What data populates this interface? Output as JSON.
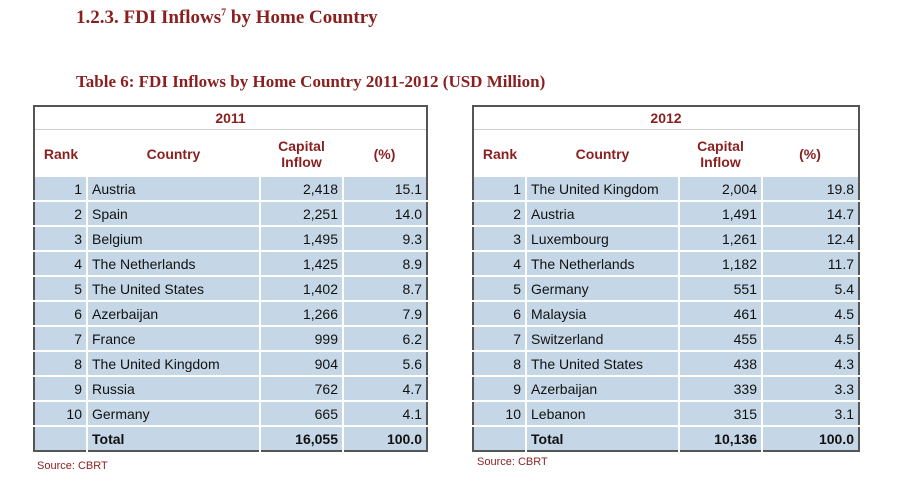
{
  "section_heading": {
    "number_title": "1.2.3. FDI Inflows",
    "footnote_mark": "7",
    "suffix": " by Home Country"
  },
  "table_caption": "Table 6: FDI Inflows by Home Country 2011-2012 (USD Million)",
  "headers": {
    "rank": "Rank",
    "country": "Country",
    "capital_line1": "Capital",
    "capital_line2": "Inflow",
    "percent": "(%)"
  },
  "tables": [
    {
      "year": "2011",
      "rows": [
        {
          "rank": "1",
          "country": "Austria",
          "capital": "2,418",
          "percent": "15.1"
        },
        {
          "rank": "2",
          "country": "Spain",
          "capital": "2,251",
          "percent": "14.0"
        },
        {
          "rank": "3",
          "country": "Belgium",
          "capital": "1,495",
          "percent": "9.3"
        },
        {
          "rank": "4",
          "country": "The Netherlands",
          "capital": "1,425",
          "percent": "8.9"
        },
        {
          "rank": "5",
          "country": "The United States",
          "capital": "1,402",
          "percent": "8.7"
        },
        {
          "rank": "6",
          "country": "Azerbaijan",
          "capital": "1,266",
          "percent": "7.9"
        },
        {
          "rank": "7",
          "country": "France",
          "capital": "999",
          "percent": "6.2"
        },
        {
          "rank": "8",
          "country": "The United Kingdom",
          "capital": "904",
          "percent": "5.6"
        },
        {
          "rank": "9",
          "country": "Russia",
          "capital": "762",
          "percent": "4.7"
        },
        {
          "rank": "10",
          "country": "Germany",
          "capital": "665",
          "percent": "4.1"
        }
      ],
      "total": {
        "label": "Total",
        "capital": "16,055",
        "percent": "100.0"
      },
      "source": "Source: CBRT"
    },
    {
      "year": "2012",
      "rows": [
        {
          "rank": "1",
          "country": "The United Kingdom",
          "capital": "2,004",
          "percent": "19.8"
        },
        {
          "rank": "2",
          "country": "Austria",
          "capital": "1,491",
          "percent": "14.7"
        },
        {
          "rank": "3",
          "country": "Luxembourg",
          "capital": "1,261",
          "percent": "12.4"
        },
        {
          "rank": "4",
          "country": "The Netherlands",
          "capital": "1,182",
          "percent": "11.7"
        },
        {
          "rank": "5",
          "country": "Germany",
          "capital": "551",
          "percent": "5.4"
        },
        {
          "rank": "6",
          "country": "Malaysia",
          "capital": "461",
          "percent": "4.5"
        },
        {
          "rank": "7",
          "country": "Switzerland",
          "capital": "455",
          "percent": "4.5"
        },
        {
          "rank": "8",
          "country": "The United States",
          "capital": "438",
          "percent": "4.3"
        },
        {
          "rank": "9",
          "country": "Azerbaijan",
          "capital": "339",
          "percent": "3.3"
        },
        {
          "rank": "10",
          "country": "Lebanon",
          "capital": "315",
          "percent": "3.1"
        }
      ],
      "total": {
        "label": "Total",
        "capital": "10,136",
        "percent": "100.0"
      },
      "source": "Source: CBRT"
    }
  ]
}
